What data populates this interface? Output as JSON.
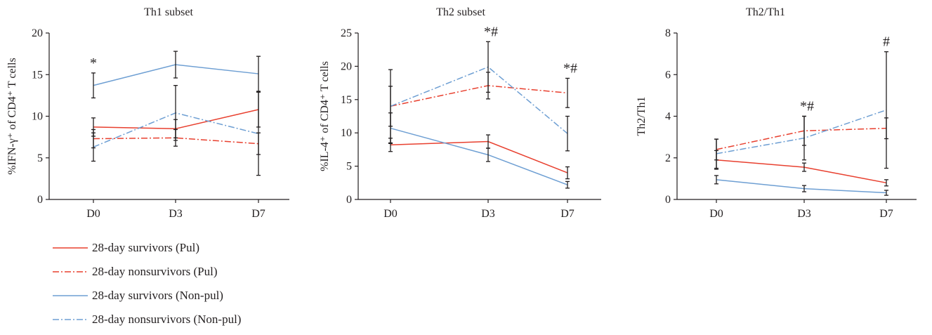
{
  "colors": {
    "pul": "#e8402f",
    "nonpul": "#6e9fd3",
    "axis": "#231f20",
    "errorbar": "#231f20"
  },
  "legend": [
    {
      "label": "28-day survivors (Pul)",
      "color": "#e8402f",
      "dash": "solid"
    },
    {
      "label": "28-day nonsurvivors (Pul)",
      "color": "#e8402f",
      "dash": "dashdot"
    },
    {
      "label": "28-day survivors (Non-pul)",
      "color": "#6e9fd3",
      "dash": "solid"
    },
    {
      "label": "28-day nonsurvivors (Non-pul)",
      "color": "#6e9fd3",
      "dash": "dashdot"
    }
  ],
  "chart_data": [
    {
      "type": "line",
      "title": "Th1 subset",
      "ylabel": "%IFN-γ⁺ of CD4⁺ T cells",
      "categories": [
        "D0",
        "D3",
        "D7"
      ],
      "ylim": [
        0,
        20
      ],
      "yticks": [
        "0",
        "5",
        "10",
        "15",
        "20"
      ],
      "grid": false,
      "series": [
        {
          "name": "28-day survivors (Pul)",
          "values": [
            8.7,
            8.5,
            10.8
          ],
          "err": [
            1.1,
            1.1,
            2.1
          ]
        },
        {
          "name": "28-day nonsurvivors (Pul)",
          "values": [
            7.3,
            7.4,
            6.7
          ],
          "err": [
            1.1,
            1.0,
            1.3
          ]
        },
        {
          "name": "28-day survivors (Non-pul)",
          "values": [
            13.7,
            16.2,
            15.1
          ],
          "err": [
            1.5,
            1.6,
            2.1
          ]
        },
        {
          "name": "28-day nonsurvivors (Non-pul)",
          "values": [
            6.3,
            10.4,
            7.9
          ],
          "err": [
            1.7,
            3.3,
            5.0
          ]
        }
      ],
      "annotations": [
        {
          "x": "D0",
          "text": "*"
        }
      ]
    },
    {
      "type": "line",
      "title": "Th2 subset",
      "ylabel": "%IL-4⁺ of CD4⁺ T cells",
      "categories": [
        "D0",
        "D3",
        "D7"
      ],
      "ylim": [
        0,
        25
      ],
      "yticks": [
        "0",
        "5",
        "10",
        "15",
        "20",
        "25"
      ],
      "grid": false,
      "series": [
        {
          "name": "28-day survivors (Pul)",
          "values": [
            8.2,
            8.7,
            4.0
          ],
          "err": [
            1.0,
            1.0,
            0.9
          ]
        },
        {
          "name": "28-day nonsurvivors (Pul)",
          "values": [
            14.0,
            17.1,
            16.0
          ],
          "err": [
            3.0,
            2.0,
            2.2
          ]
        },
        {
          "name": "28-day survivors (Non-pul)",
          "values": [
            10.7,
            6.7,
            2.2
          ],
          "err": [
            2.3,
            1.0,
            0.5
          ]
        },
        {
          "name": "28-day nonsurvivors (Non-pul)",
          "values": [
            14.0,
            19.9,
            9.9
          ],
          "err": [
            5.5,
            3.8,
            2.6
          ]
        }
      ],
      "annotations": [
        {
          "x": "D3",
          "text": "*#"
        },
        {
          "x": "D7",
          "text": "*#"
        }
      ]
    },
    {
      "type": "line",
      "title": "Th2/Th1",
      "ylabel": "Th2/Th1",
      "categories": [
        "D0",
        "D3",
        "D7"
      ],
      "ylim": [
        0,
        8
      ],
      "yticks": [
        "0",
        "2",
        "4",
        "6",
        "8"
      ],
      "grid": false,
      "series": [
        {
          "name": "28-day survivors (Pul)",
          "values": [
            1.9,
            1.55,
            0.8
          ],
          "err": [
            0.45,
            0.2,
            0.15
          ]
        },
        {
          "name": "28-day nonsurvivors (Pul)",
          "values": [
            2.4,
            3.3,
            3.42
          ],
          "err": [
            0.5,
            0.7,
            0.5
          ]
        },
        {
          "name": "28-day survivors (Non-pul)",
          "values": [
            0.95,
            0.52,
            0.32
          ],
          "err": [
            0.2,
            0.15,
            0.12
          ]
        },
        {
          "name": "28-day nonsurvivors (Non-pul)",
          "values": [
            2.2,
            2.95,
            4.3
          ],
          "err": [
            0.7,
            1.05,
            2.8
          ]
        }
      ],
      "annotations": [
        {
          "x": "D3",
          "text": "*#"
        },
        {
          "x": "D7",
          "text": "#"
        }
      ]
    }
  ]
}
